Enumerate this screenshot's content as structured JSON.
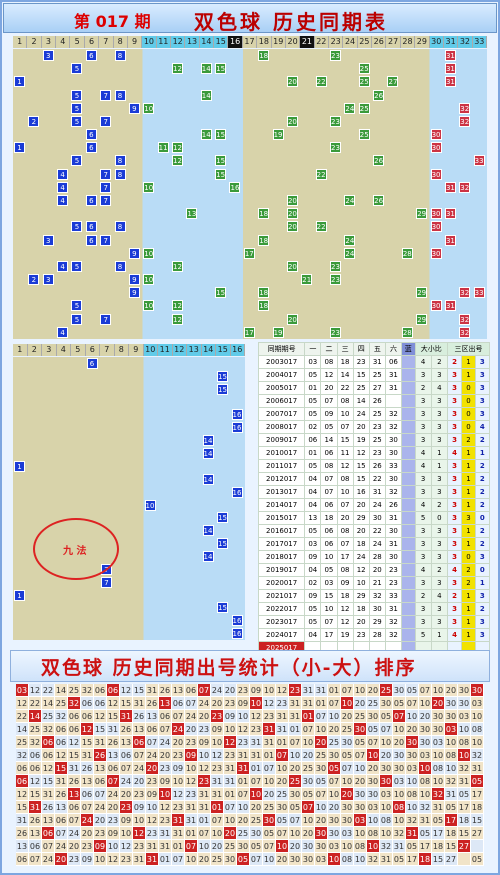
{
  "header": {
    "period_prefix": "第",
    "period": "017",
    "period_suffix": "期",
    "title": "双色球 历史同期表"
  },
  "col_numbers": [
    "1",
    "2",
    "3",
    "4",
    "5",
    "6",
    "7",
    "8",
    "9",
    "10",
    "11",
    "12",
    "13",
    "14",
    "15",
    "16",
    "17",
    "18",
    "19",
    "20",
    "21",
    "22",
    "23",
    "24",
    "25",
    "26",
    "27",
    "28",
    "29",
    "30",
    "31",
    "32",
    "33"
  ],
  "blue_cols": [
    "1",
    "2",
    "3",
    "4",
    "5",
    "6",
    "7",
    "8",
    "9",
    "10",
    "11",
    "12",
    "13",
    "14",
    "15",
    "16"
  ],
  "history_table": {
    "headers": [
      "同期期号",
      "一",
      "二",
      "三",
      "四",
      "五",
      "六",
      "蓝",
      "大小比",
      "三区出号"
    ],
    "rows": [
      [
        "2003017",
        "03",
        "08",
        "18",
        "23",
        "31",
        "06",
        "",
        "4",
        "2",
        "2",
        "1",
        "3"
      ],
      [
        "2004017",
        "05",
        "12",
        "14",
        "15",
        "25",
        "31",
        "",
        "3",
        "3",
        "3",
        "1",
        "3"
      ],
      [
        "2005017",
        "01",
        "20",
        "22",
        "25",
        "27",
        "31",
        "",
        "2",
        "4",
        "3",
        "0",
        "3"
      ],
      [
        "2006017",
        "05",
        "07",
        "08",
        "14",
        "26",
        "",
        "",
        "3",
        "3",
        "3",
        "0",
        "3"
      ],
      [
        "2007017",
        "05",
        "09",
        "10",
        "24",
        "25",
        "32",
        "",
        "3",
        "3",
        "3",
        "0",
        "3"
      ],
      [
        "2008017",
        "02",
        "05",
        "07",
        "20",
        "23",
        "32",
        "",
        "3",
        "3",
        "3",
        "0",
        "4"
      ],
      [
        "2009017",
        "06",
        "14",
        "15",
        "19",
        "25",
        "30",
        "",
        "3",
        "3",
        "3",
        "2",
        "2"
      ],
      [
        "2010017",
        "01",
        "06",
        "11",
        "12",
        "23",
        "30",
        "",
        "4",
        "1",
        "4",
        "1",
        "1"
      ],
      [
        "2011017",
        "05",
        "08",
        "12",
        "15",
        "26",
        "33",
        "",
        "4",
        "1",
        "3",
        "1",
        "2"
      ],
      [
        "2012017",
        "04",
        "07",
        "08",
        "15",
        "22",
        "30",
        "",
        "3",
        "3",
        "3",
        "1",
        "2"
      ],
      [
        "2013017",
        "04",
        "07",
        "10",
        "16",
        "31",
        "32",
        "",
        "3",
        "3",
        "3",
        "1",
        "2"
      ],
      [
        "2014017",
        "04",
        "06",
        "07",
        "20",
        "24",
        "26",
        "",
        "4",
        "2",
        "3",
        "1",
        "2"
      ],
      [
        "2015017",
        "13",
        "18",
        "20",
        "29",
        "30",
        "31",
        "",
        "5",
        "0",
        "3",
        "3",
        "0"
      ],
      [
        "2016017",
        "05",
        "06",
        "08",
        "20",
        "22",
        "30",
        "",
        "3",
        "3",
        "3",
        "1",
        "2"
      ],
      [
        "2017017",
        "03",
        "06",
        "07",
        "18",
        "24",
        "31",
        "",
        "3",
        "3",
        "3",
        "1",
        "2"
      ],
      [
        "2018017",
        "09",
        "10",
        "17",
        "24",
        "28",
        "30",
        "",
        "3",
        "3",
        "3",
        "0",
        "3"
      ],
      [
        "2019017",
        "04",
        "05",
        "08",
        "12",
        "20",
        "23",
        "",
        "4",
        "2",
        "4",
        "2",
        "0"
      ],
      [
        "2020017",
        "02",
        "03",
        "09",
        "10",
        "21",
        "23",
        "",
        "3",
        "3",
        "3",
        "2",
        "1"
      ],
      [
        "2021017",
        "09",
        "15",
        "18",
        "29",
        "32",
        "33",
        "",
        "2",
        "4",
        "2",
        "1",
        "3"
      ],
      [
        "2022017",
        "05",
        "10",
        "12",
        "18",
        "30",
        "31",
        "",
        "3",
        "3",
        "3",
        "1",
        "2"
      ],
      [
        "2023017",
        "05",
        "07",
        "12",
        "20",
        "29",
        "32",
        "",
        "3",
        "3",
        "3",
        "1",
        "3"
      ],
      [
        "2024017",
        "04",
        "17",
        "19",
        "23",
        "28",
        "32",
        "",
        "5",
        "1",
        "4",
        "1",
        "3"
      ],
      [
        "2025017",
        "",
        "",
        "",
        "",
        "",
        "",
        "",
        "",
        "",
        "",
        "",
        ""
      ]
    ]
  },
  "banner": {
    "title": "双色球 历史同期出号统计（小-大）排序"
  },
  "stamp": {
    "text": "九 法"
  },
  "colors": {
    "blue_ball": "#1a3bd6",
    "green_ball": "#3a9a3a",
    "red_ball": "#c22222",
    "header_blue": "#61cbe9",
    "tan": "#d8d3aa"
  }
}
